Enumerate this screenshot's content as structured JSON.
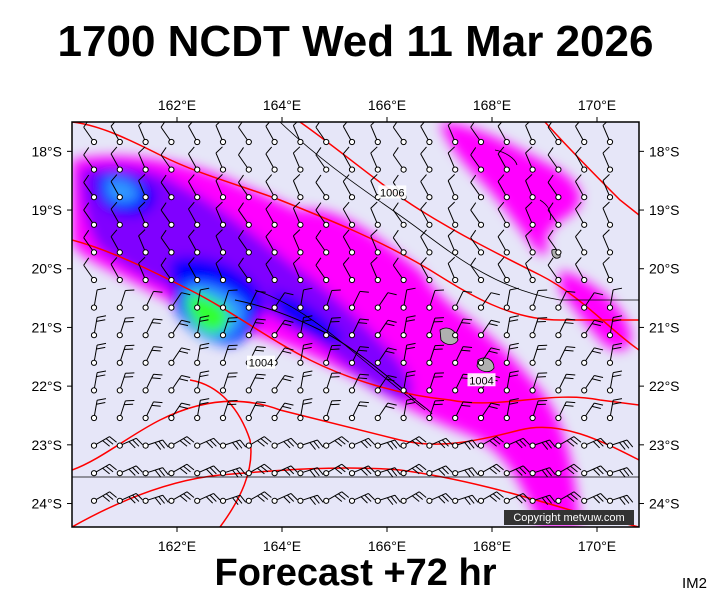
{
  "title": "1700 NCDT Wed 11 Mar 2026",
  "footer": "Forecast +72 hr",
  "image_id": "IM2",
  "copyright": "Copyright metvuw.com",
  "map": {
    "lon_range": [
      160.0,
      170.8
    ],
    "lat_range": [
      -24.4,
      -17.5
    ],
    "lon_ticks": [
      "162°E",
      "164°E",
      "166°E",
      "168°E",
      "170°E"
    ],
    "lon_tick_values": [
      162,
      164,
      166,
      168,
      170
    ],
    "lat_ticks": [
      "18°S",
      "19°S",
      "20°S",
      "21°S",
      "22°S",
      "23°S",
      "24°S"
    ],
    "lat_tick_values": [
      -18,
      -19,
      -20,
      -21,
      -22,
      -23,
      -24
    ],
    "isobar_labels": [
      {
        "text": "1006",
        "lon": 166.1,
        "lat": -18.7
      },
      {
        "text": "1004",
        "lon": 163.6,
        "lat": -21.6
      },
      {
        "text": "1004",
        "lon": 167.8,
        "lat": -21.9
      }
    ],
    "colors": {
      "background": "#e6e6f8",
      "rain_light": "#ff00ff",
      "rain_medium": "#8000ff",
      "rain_heavy": "#0000ff",
      "rain_very_heavy": "#3399ff",
      "rain_extreme": "#33ff33",
      "isobar": "#ff0000",
      "land": "#b0b0b0"
    }
  }
}
